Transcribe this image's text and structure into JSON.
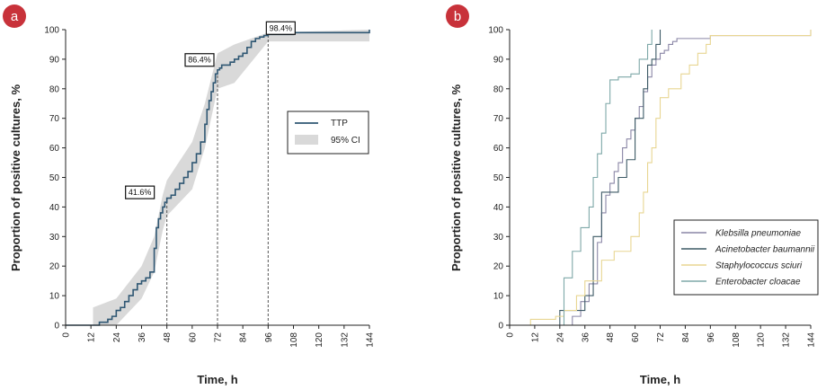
{
  "chart_data": [
    {
      "panel": "a",
      "type": "line",
      "xlabel": "Time, h",
      "ylabel": "Proportion of positive cultures, %",
      "xlim": [
        0,
        144
      ],
      "ylim": [
        0,
        100
      ],
      "xticks": [
        "0",
        "12",
        "24",
        "36",
        "48",
        "60",
        "72",
        "84",
        "96",
        "108",
        "120",
        "132",
        "144"
      ],
      "yticks": [
        "0",
        "10",
        "20",
        "30",
        "40",
        "50",
        "60",
        "70",
        "80",
        "90",
        "100"
      ],
      "grid": false,
      "legend": {
        "placement": "right",
        "entries": [
          "TTP",
          "95% CI"
        ]
      },
      "colors": {
        "line": "#2f5773",
        "ci": "#d9d9d9"
      },
      "series": [
        {
          "name": "TTP",
          "step": true,
          "x": [
            0,
            13,
            16,
            20,
            22,
            24,
            26,
            28,
            30,
            32,
            34,
            36,
            38,
            40,
            42,
            43,
            44,
            45,
            46,
            47,
            48,
            50,
            52,
            54,
            56,
            58,
            60,
            62,
            64,
            66,
            67,
            68,
            69,
            70,
            71,
            72,
            73,
            74,
            76,
            78,
            80,
            82,
            84,
            86,
            88,
            90,
            92,
            94,
            96,
            108,
            120,
            132,
            144
          ],
          "y": [
            0,
            0,
            1,
            2,
            3,
            5,
            6,
            8,
            10,
            12,
            14,
            15,
            16,
            18,
            26,
            33,
            36,
            38,
            40,
            41.6,
            43,
            44,
            46,
            48,
            50,
            52,
            55,
            58,
            62,
            68,
            73,
            76,
            79,
            82,
            85,
            86.4,
            87,
            88,
            88,
            89,
            90,
            91,
            92,
            94,
            96,
            97,
            97.5,
            98,
            98.4,
            99,
            99,
            99,
            100
          ]
        },
        {
          "name": "95% CI",
          "band": true,
          "x": [
            13,
            24,
            36,
            42,
            46,
            48,
            60,
            66,
            72,
            80,
            96,
            144
          ],
          "lower": [
            0,
            0,
            9,
            18,
            32,
            37,
            46,
            60,
            80,
            82,
            96,
            96
          ],
          "upper": [
            6,
            9,
            20,
            30,
            44,
            49,
            62,
            75,
            92,
            95,
            99,
            100
          ]
        }
      ],
      "annotations": [
        {
          "label": "41.6%",
          "x": 48,
          "y": 41.6
        },
        {
          "label": "86.4%",
          "x": 72,
          "y": 86.4
        },
        {
          "label": "98.4%",
          "x": 96,
          "y": 98.4
        }
      ],
      "reference_lines_x": [
        48,
        72,
        96
      ]
    },
    {
      "panel": "b",
      "type": "line",
      "xlabel": "Time, h",
      "ylabel": "Proportion of positive cultures, %",
      "xlim": [
        0,
        144
      ],
      "ylim": [
        0,
        100
      ],
      "xticks": [
        "0",
        "12",
        "24",
        "36",
        "48",
        "60",
        "72",
        "84",
        "96",
        "108",
        "120",
        "132",
        "144"
      ],
      "yticks": [
        "0",
        "10",
        "20",
        "30",
        "40",
        "50",
        "60",
        "70",
        "80",
        "90",
        "100"
      ],
      "grid": false,
      "legend": {
        "placement": "bottom-right"
      },
      "series": [
        {
          "name": "Klebsilla pneumoniae",
          "color": "#8a86a6",
          "step": true,
          "x": [
            0,
            30,
            34,
            38,
            42,
            44,
            46,
            48,
            50,
            52,
            54,
            56,
            58,
            60,
            62,
            64,
            66,
            68,
            70,
            72,
            74,
            76,
            78,
            80,
            96,
            144
          ],
          "y": [
            0,
            3,
            8,
            14,
            28,
            38,
            44,
            48,
            52,
            55,
            60,
            63,
            66,
            70,
            74,
            79,
            84,
            88,
            90,
            92,
            93,
            95,
            96,
            97,
            98,
            100
          ]
        },
        {
          "name": "Acinetobacter baumannii",
          "color": "#3d5a66",
          "step": true,
          "x": [
            0,
            24,
            30,
            36,
            40,
            44,
            46,
            52,
            56,
            60,
            64,
            66,
            68,
            70,
            72
          ],
          "y": [
            0,
            5,
            5,
            10,
            30,
            45,
            45,
            50,
            56,
            70,
            80,
            88,
            90,
            95,
            100
          ]
        },
        {
          "name": "Staphylococcus sciuri",
          "color": "#e8d692",
          "step": true,
          "x": [
            0,
            10,
            22,
            26,
            32,
            36,
            44,
            50,
            58,
            62,
            64,
            66,
            68,
            70,
            72,
            76,
            82,
            86,
            90,
            94,
            96,
            144
          ],
          "y": [
            0,
            2,
            3,
            5,
            10,
            15,
            22,
            25,
            30,
            38,
            45,
            55,
            60,
            70,
            77,
            80,
            85,
            88,
            92,
            95,
            98,
            100
          ]
        },
        {
          "name": "Enterobacter cloacae",
          "color": "#7ea8a8",
          "step": true,
          "x": [
            0,
            26,
            30,
            34,
            38,
            40,
            42,
            44,
            46,
            48,
            52,
            58,
            62,
            66,
            68
          ],
          "y": [
            0,
            16,
            25,
            33,
            40,
            50,
            58,
            65,
            75,
            83,
            84,
            85,
            90,
            95,
            100
          ]
        }
      ]
    }
  ]
}
